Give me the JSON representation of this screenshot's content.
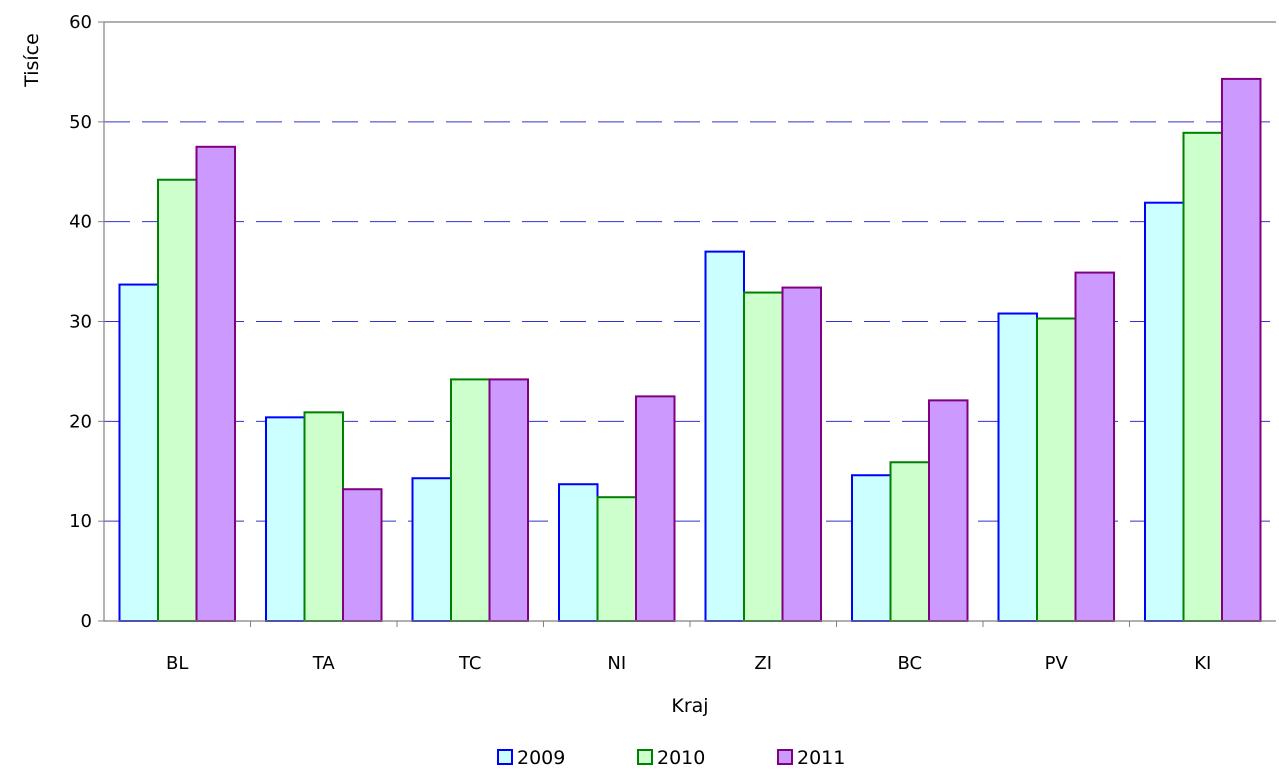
{
  "chart_data": {
    "type": "bar",
    "title": "",
    "xlabel": "Kraj",
    "ylabel": "Tisíce",
    "ylim": [
      0,
      60
    ],
    "yticks": [
      0,
      10,
      20,
      30,
      40,
      50,
      60
    ],
    "grid": "horizontal dashed",
    "legend_position": "bottom",
    "categories": [
      "BL",
      "TA",
      "TC",
      "NI",
      "ZI",
      "BC",
      "PV",
      "KI"
    ],
    "series": [
      {
        "name": "2009",
        "values": [
          33.7,
          20.4,
          14.3,
          13.7,
          37.0,
          14.6,
          30.8,
          41.9
        ],
        "fill": "#ccffff",
        "stroke": "#0000ff"
      },
      {
        "name": "2010",
        "values": [
          44.2,
          20.9,
          24.2,
          12.4,
          32.9,
          15.9,
          30.3,
          48.9
        ],
        "fill": "#ccffcc",
        "stroke": "#008000"
      },
      {
        "name": "2011",
        "values": [
          47.5,
          13.2,
          24.2,
          22.5,
          33.4,
          22.1,
          34.9,
          54.3
        ],
        "fill": "#cc99ff",
        "stroke": "#800080"
      }
    ],
    "colors": {
      "grid": "#3333cc",
      "axis": "#808080"
    }
  }
}
